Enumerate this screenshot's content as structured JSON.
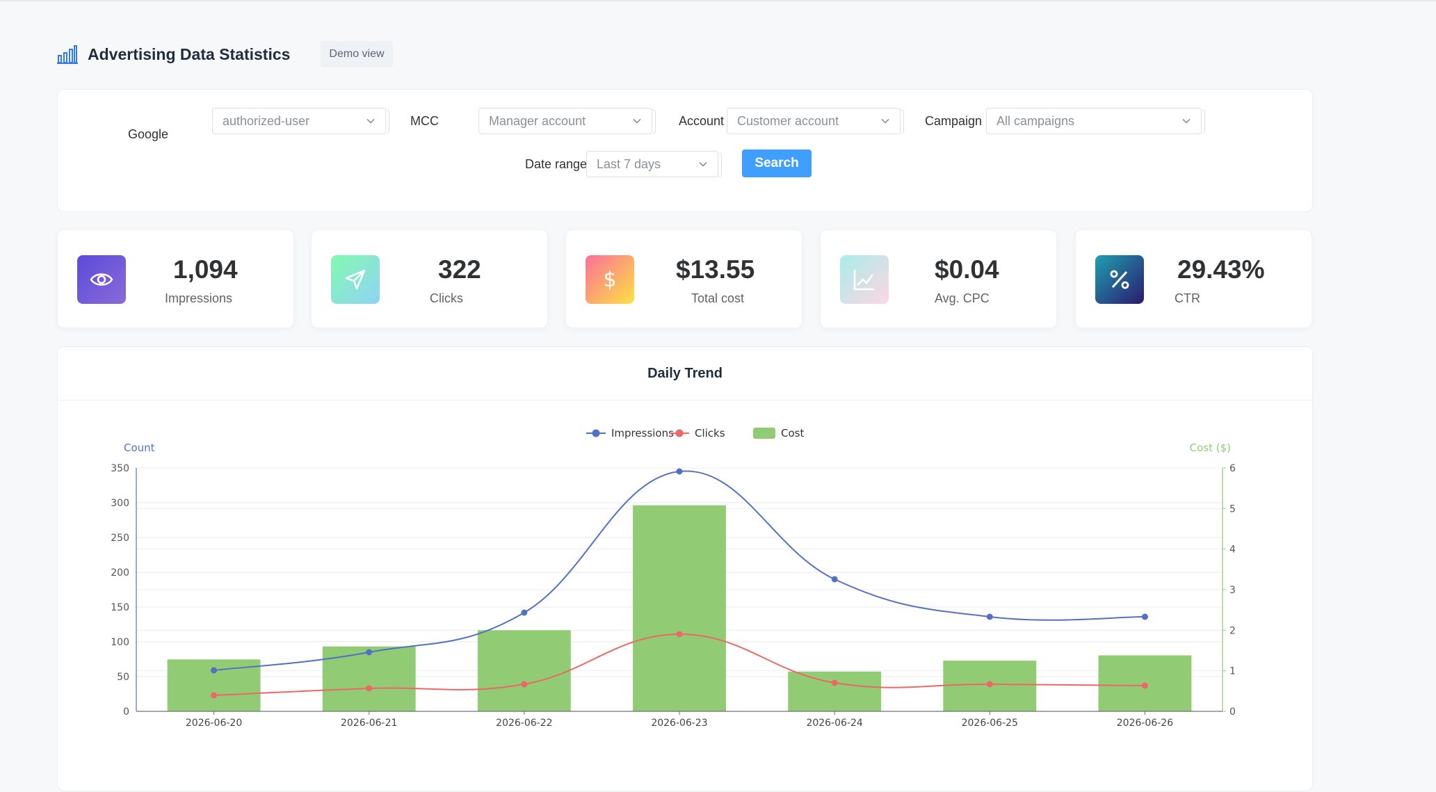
{
  "header": {
    "title": "Advertising Data Statistics",
    "badge": "Demo view"
  },
  "filters": {
    "google_label": "Google",
    "google_value": "authorized-user",
    "mcc_label": "MCC",
    "mcc_value": "Manager account",
    "account_label": "Account",
    "account_value": "Customer account",
    "campaign_label": "Campaign",
    "campaign_value": "All campaigns",
    "date_label": "Date range",
    "date_value": "Last 7 days",
    "search_label": "Search"
  },
  "stats": [
    {
      "value": "1,094",
      "label": "Impressions",
      "icon": "eye-icon"
    },
    {
      "value": "322",
      "label": "Clicks",
      "icon": "send-icon"
    },
    {
      "value": "$13.55",
      "label": "Total cost",
      "icon": "dollar-icon"
    },
    {
      "value": "$0.04",
      "label": "Avg. CPC",
      "icon": "trend-chart-icon"
    },
    {
      "value": "29.43%",
      "label": "CTR",
      "icon": "percent-icon"
    }
  ],
  "chart_title": "Daily Trend",
  "chart_data": {
    "type": "bar",
    "categories": [
      "2026-06-20",
      "2026-06-21",
      "2026-06-22",
      "2026-06-23",
      "2026-06-24",
      "2026-06-25",
      "2026-06-26"
    ],
    "series": [
      {
        "name": "Impressions",
        "type": "line",
        "axis": "left",
        "color": "#5470c6",
        "values": [
          59,
          85,
          142,
          345,
          190,
          136,
          136
        ]
      },
      {
        "name": "Clicks",
        "type": "line",
        "axis": "left",
        "color": "#ee6666",
        "values": [
          23,
          33,
          39,
          111,
          41,
          39,
          37
        ]
      },
      {
        "name": "Cost",
        "type": "bar",
        "axis": "right",
        "color": "#91cc75",
        "values": [
          1.28,
          1.6,
          2.0,
          5.08,
          0.98,
          1.25,
          1.38
        ]
      }
    ],
    "ylabel": "Count",
    "ylabel_right": "Cost ($)",
    "ylim": [
      0,
      350
    ],
    "ylim_right": [
      0,
      6
    ],
    "yticks": [
      "0",
      "50",
      "100",
      "150",
      "200",
      "250",
      "300",
      "350"
    ],
    "yticks_right": [
      "0",
      "1",
      "2",
      "3",
      "4",
      "5",
      "6"
    ],
    "legend": "top-center",
    "grid": true
  }
}
